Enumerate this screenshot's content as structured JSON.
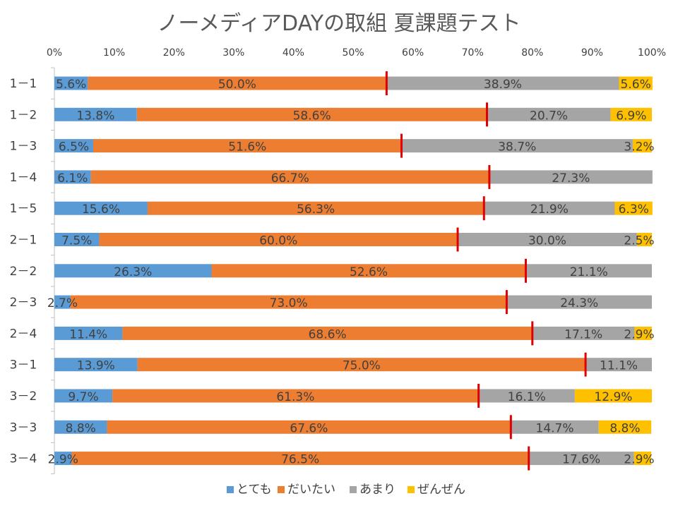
{
  "chart_data": {
    "type": "bar",
    "orientation": "horizontal-stacked-100",
    "title": "ノーメディアDAYの取組 夏課題テスト",
    "xlabel": "",
    "ylabel": "",
    "xlim": [
      0,
      100
    ],
    "x_ticks": [
      "0%",
      "10%",
      "20%",
      "30%",
      "40%",
      "50%",
      "60%",
      "70%",
      "80%",
      "90%",
      "100%"
    ],
    "grid": false,
    "legend_position": "bottom",
    "categories": [
      "1－1",
      "1－2",
      "1－3",
      "1－4",
      "1－5",
      "2－1",
      "2－2",
      "2－3",
      "2－4",
      "3－1",
      "3－2",
      "3－3",
      "3－4"
    ],
    "series": [
      {
        "name": "とても",
        "color": "#5B9BD5",
        "values": [
          5.6,
          13.8,
          6.5,
          6.1,
          15.6,
          7.5,
          26.3,
          2.7,
          11.4,
          13.9,
          9.7,
          8.8,
          2.9
        ],
        "labels": [
          "5.6%",
          "13.8%",
          "6.5%",
          "6.1%",
          "15.6%",
          "7.5%",
          "26.3%",
          "2.7%",
          "11.4%",
          "13.9%",
          "9.7%",
          "8.8%",
          "2.9%"
        ]
      },
      {
        "name": "だいたい",
        "color": "#ED7D31",
        "values": [
          50.0,
          58.6,
          51.6,
          66.7,
          56.3,
          60.0,
          52.6,
          73.0,
          68.6,
          75.0,
          61.3,
          67.6,
          76.5
        ],
        "labels": [
          "50.0%",
          "58.6%",
          "51.6%",
          "66.7%",
          "56.3%",
          "60.0%",
          "52.6%",
          "73.0%",
          "68.6%",
          "75.0%",
          "61.3%",
          "67.6%",
          "76.5%"
        ]
      },
      {
        "name": "あまり",
        "color": "#A5A5A5",
        "values": [
          38.9,
          20.7,
          38.7,
          27.3,
          21.9,
          30.0,
          21.1,
          24.3,
          17.1,
          11.1,
          16.1,
          14.7,
          17.6
        ],
        "labels": [
          "38.9%",
          "20.7%",
          "38.7%",
          "27.3%",
          "21.9%",
          "30.0%",
          "21.1%",
          "24.3%",
          "17.1%",
          "11.1%",
          "16.1%",
          "14.7%",
          "17.6%"
        ]
      },
      {
        "name": "ぜんぜん",
        "color": "#FFC000",
        "values": [
          5.6,
          6.9,
          3.2,
          0,
          6.3,
          2.5,
          0,
          0,
          2.9,
          0,
          12.9,
          8.8,
          2.9
        ],
        "labels": [
          "5.6%",
          "6.9%",
          "3.2%",
          "",
          "6.3%",
          "2.5%",
          "",
          "",
          "2.9%",
          "",
          "12.9%",
          "8.8%",
          "2.9%"
        ]
      }
    ],
    "marker_color": "#E00000"
  }
}
